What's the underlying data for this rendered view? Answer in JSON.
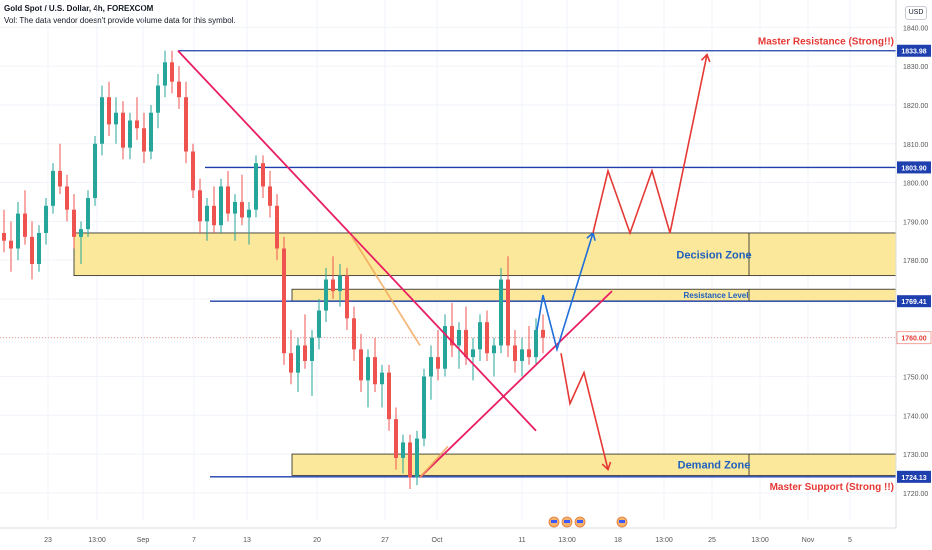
{
  "header": {
    "symbol_line": "Gold Spot / U.S. Dollar, 4h, FOREXCOM",
    "volume_note": "Vol: The data vendor doesn't provide volume data for this symbol."
  },
  "currency": "USD",
  "colors": {
    "up": "#26a69a",
    "down": "#ef5350",
    "zone_fill": "#fbe89a",
    "level_line": "#1e3fae",
    "trend_line": "#e91e63",
    "annot_red": "#e53935",
    "annot_blue": "#1e6fd9",
    "annot_orange": "#f2a65a"
  },
  "chart_data": {
    "type": "candlestick",
    "y_axis": {
      "min": 1713,
      "max": 1845,
      "ticks": [
        1720,
        1730,
        1740,
        1750,
        1760,
        1770,
        1780,
        1790,
        1800,
        1810,
        1820,
        1830,
        1840
      ],
      "labels": [
        "1720.00",
        "1730.00",
        "1740.00",
        "1750.00",
        "1760.00",
        "1770.00",
        "1780.00",
        "1790.00",
        "1800.00",
        "1810.00",
        "1820.00",
        "1830.00",
        "1840.00"
      ]
    },
    "x_axis": {
      "ticks": [
        "23",
        "13:00",
        "Sep",
        "7",
        "13",
        "20",
        "27",
        "Oct",
        "11",
        "13:00",
        "18",
        "13:00",
        "25",
        "13:00",
        "Nov",
        "5"
      ]
    },
    "price_labels": [
      {
        "value": 1833.98,
        "text": "1833.98",
        "style": "level"
      },
      {
        "value": 1803.9,
        "text": "1803.90",
        "style": "level"
      },
      {
        "value": 1769.41,
        "text": "1769.41",
        "style": "level"
      },
      {
        "value": 1760.0,
        "text": "1760.00",
        "style": "current"
      },
      {
        "value": 1724.13,
        "text": "1724.13",
        "style": "level"
      }
    ],
    "series": [
      {
        "x": 0,
        "o": 1787,
        "h": 1793,
        "l": 1782,
        "c": 1785
      },
      {
        "x": 1,
        "o": 1785,
        "h": 1790,
        "l": 1777,
        "c": 1783
      },
      {
        "x": 2,
        "o": 1783,
        "h": 1795,
        "l": 1780,
        "c": 1792
      },
      {
        "x": 3,
        "o": 1792,
        "h": 1798,
        "l": 1784,
        "c": 1786
      },
      {
        "x": 4,
        "o": 1786,
        "h": 1790,
        "l": 1775,
        "c": 1779
      },
      {
        "x": 5,
        "o": 1779,
        "h": 1789,
        "l": 1777,
        "c": 1787
      },
      {
        "x": 6,
        "o": 1787,
        "h": 1796,
        "l": 1784,
        "c": 1794
      },
      {
        "x": 7,
        "o": 1794,
        "h": 1805,
        "l": 1792,
        "c": 1803
      },
      {
        "x": 8,
        "o": 1803,
        "h": 1810,
        "l": 1797,
        "c": 1799
      },
      {
        "x": 9,
        "o": 1799,
        "h": 1802,
        "l": 1790,
        "c": 1793
      },
      {
        "x": 10,
        "o": 1793,
        "h": 1797,
        "l": 1783,
        "c": 1786
      },
      {
        "x": 11,
        "o": 1786,
        "h": 1790,
        "l": 1779,
        "c": 1788
      },
      {
        "x": 12,
        "o": 1788,
        "h": 1798,
        "l": 1786,
        "c": 1796
      },
      {
        "x": 13,
        "o": 1796,
        "h": 1812,
        "l": 1794,
        "c": 1810
      },
      {
        "x": 14,
        "o": 1810,
        "h": 1825,
        "l": 1807,
        "c": 1822
      },
      {
        "x": 15,
        "o": 1822,
        "h": 1826,
        "l": 1812,
        "c": 1815
      },
      {
        "x": 16,
        "o": 1815,
        "h": 1822,
        "l": 1810,
        "c": 1818
      },
      {
        "x": 17,
        "o": 1818,
        "h": 1821,
        "l": 1806,
        "c": 1809
      },
      {
        "x": 18,
        "o": 1809,
        "h": 1818,
        "l": 1806,
        "c": 1816
      },
      {
        "x": 19,
        "o": 1816,
        "h": 1822,
        "l": 1811,
        "c": 1814
      },
      {
        "x": 20,
        "o": 1814,
        "h": 1818,
        "l": 1805,
        "c": 1808
      },
      {
        "x": 21,
        "o": 1808,
        "h": 1820,
        "l": 1806,
        "c": 1818
      },
      {
        "x": 22,
        "o": 1818,
        "h": 1828,
        "l": 1814,
        "c": 1825
      },
      {
        "x": 23,
        "o": 1825,
        "h": 1834,
        "l": 1822,
        "c": 1831
      },
      {
        "x": 24,
        "o": 1831,
        "h": 1833.98,
        "l": 1823,
        "c": 1826
      },
      {
        "x": 25,
        "o": 1826,
        "h": 1830,
        "l": 1819,
        "c": 1822
      },
      {
        "x": 26,
        "o": 1822,
        "h": 1826,
        "l": 1805,
        "c": 1808
      },
      {
        "x": 27,
        "o": 1808,
        "h": 1810,
        "l": 1796,
        "c": 1798
      },
      {
        "x": 28,
        "o": 1798,
        "h": 1801,
        "l": 1787,
        "c": 1790
      },
      {
        "x": 29,
        "o": 1790,
        "h": 1796,
        "l": 1785,
        "c": 1794
      },
      {
        "x": 30,
        "o": 1794,
        "h": 1799,
        "l": 1787,
        "c": 1789
      },
      {
        "x": 31,
        "o": 1789,
        "h": 1801,
        "l": 1787,
        "c": 1799
      },
      {
        "x": 32,
        "o": 1799,
        "h": 1803,
        "l": 1790,
        "c": 1792
      },
      {
        "x": 33,
        "o": 1792,
        "h": 1797,
        "l": 1785,
        "c": 1795
      },
      {
        "x": 34,
        "o": 1795,
        "h": 1802,
        "l": 1789,
        "c": 1791
      },
      {
        "x": 35,
        "o": 1791,
        "h": 1795,
        "l": 1784,
        "c": 1793
      },
      {
        "x": 36,
        "o": 1793,
        "h": 1807,
        "l": 1791,
        "c": 1805
      },
      {
        "x": 37,
        "o": 1805,
        "h": 1807,
        "l": 1796,
        "c": 1799
      },
      {
        "x": 38,
        "o": 1799,
        "h": 1803,
        "l": 1791,
        "c": 1794
      },
      {
        "x": 39,
        "o": 1794,
        "h": 1797,
        "l": 1780,
        "c": 1783
      },
      {
        "x": 40,
        "o": 1783,
        "h": 1786,
        "l": 1753,
        "c": 1756
      },
      {
        "x": 41,
        "o": 1756,
        "h": 1762,
        "l": 1748,
        "c": 1751
      },
      {
        "x": 42,
        "o": 1751,
        "h": 1760,
        "l": 1746,
        "c": 1758
      },
      {
        "x": 43,
        "o": 1758,
        "h": 1766,
        "l": 1752,
        "c": 1754
      },
      {
        "x": 44,
        "o": 1754,
        "h": 1762,
        "l": 1745,
        "c": 1760
      },
      {
        "x": 45,
        "o": 1760,
        "h": 1770,
        "l": 1757,
        "c": 1767
      },
      {
        "x": 46,
        "o": 1767,
        "h": 1778,
        "l": 1764,
        "c": 1775
      },
      {
        "x": 47,
        "o": 1775,
        "h": 1781,
        "l": 1770,
        "c": 1772
      },
      {
        "x": 48,
        "o": 1772,
        "h": 1779,
        "l": 1768,
        "c": 1776
      },
      {
        "x": 49,
        "o": 1776,
        "h": 1778,
        "l": 1762,
        "c": 1765
      },
      {
        "x": 50,
        "o": 1765,
        "h": 1768,
        "l": 1754,
        "c": 1757
      },
      {
        "x": 51,
        "o": 1757,
        "h": 1761,
        "l": 1746,
        "c": 1749
      },
      {
        "x": 52,
        "o": 1749,
        "h": 1757,
        "l": 1742,
        "c": 1755
      },
      {
        "x": 53,
        "o": 1755,
        "h": 1760,
        "l": 1746,
        "c": 1748
      },
      {
        "x": 54,
        "o": 1748,
        "h": 1753,
        "l": 1742,
        "c": 1751
      },
      {
        "x": 55,
        "o": 1751,
        "h": 1753,
        "l": 1736,
        "c": 1739
      },
      {
        "x": 56,
        "o": 1739,
        "h": 1742,
        "l": 1726,
        "c": 1729
      },
      {
        "x": 57,
        "o": 1729,
        "h": 1735,
        "l": 1725,
        "c": 1733
      },
      {
        "x": 58,
        "o": 1733,
        "h": 1735,
        "l": 1721,
        "c": 1724
      },
      {
        "x": 59,
        "o": 1724,
        "h": 1736,
        "l": 1722,
        "c": 1734
      },
      {
        "x": 60,
        "o": 1734,
        "h": 1752,
        "l": 1732,
        "c": 1750
      },
      {
        "x": 61,
        "o": 1750,
        "h": 1758,
        "l": 1744,
        "c": 1755
      },
      {
        "x": 62,
        "o": 1755,
        "h": 1762,
        "l": 1749,
        "c": 1752
      },
      {
        "x": 63,
        "o": 1752,
        "h": 1766,
        "l": 1750,
        "c": 1763
      },
      {
        "x": 64,
        "o": 1763,
        "h": 1769,
        "l": 1755,
        "c": 1758
      },
      {
        "x": 65,
        "o": 1758,
        "h": 1764,
        "l": 1752,
        "c": 1762
      },
      {
        "x": 66,
        "o": 1762,
        "h": 1768,
        "l": 1753,
        "c": 1755
      },
      {
        "x": 67,
        "o": 1755,
        "h": 1760,
        "l": 1749,
        "c": 1757
      },
      {
        "x": 68,
        "o": 1757,
        "h": 1766,
        "l": 1754,
        "c": 1764
      },
      {
        "x": 69,
        "o": 1764,
        "h": 1767,
        "l": 1754,
        "c": 1756
      },
      {
        "x": 70,
        "o": 1756,
        "h": 1760,
        "l": 1750,
        "c": 1758
      },
      {
        "x": 71,
        "o": 1758,
        "h": 1778,
        "l": 1756,
        "c": 1775
      },
      {
        "x": 72,
        "o": 1775,
        "h": 1781,
        "l": 1755,
        "c": 1758
      },
      {
        "x": 73,
        "o": 1758,
        "h": 1762,
        "l": 1751,
        "c": 1754
      },
      {
        "x": 74,
        "o": 1754,
        "h": 1760,
        "l": 1750,
        "c": 1757
      },
      {
        "x": 75,
        "o": 1757,
        "h": 1763,
        "l": 1753,
        "c": 1755
      },
      {
        "x": 76,
        "o": 1755,
        "h": 1765,
        "l": 1753,
        "c": 1762
      },
      {
        "x": 77,
        "o": 1762,
        "h": 1766,
        "l": 1756,
        "c": 1760
      }
    ],
    "levels": [
      {
        "name": "master-resistance-line",
        "value": 1833.98
      },
      {
        "name": "upper-resistance-line",
        "value": 1803.9
      },
      {
        "name": "resistance-level-line",
        "value": 1769.41
      },
      {
        "name": "master-support-line",
        "value": 1724.13
      }
    ],
    "zones": [
      {
        "name": "decision-zone",
        "label": "Decision Zone",
        "from": 1776,
        "to": 1787
      },
      {
        "name": "resistance-zone",
        "label": "Resistance Level",
        "from": 1769.5,
        "to": 1772.5
      },
      {
        "name": "demand-zone",
        "label": "Demand Zone",
        "from": 1724.5,
        "to": 1730
      }
    ],
    "annotations": {
      "master_resistance": "Master Resistance (Strong!!)",
      "master_support": "Master Support (Strong !!)"
    },
    "events_count": 4
  }
}
